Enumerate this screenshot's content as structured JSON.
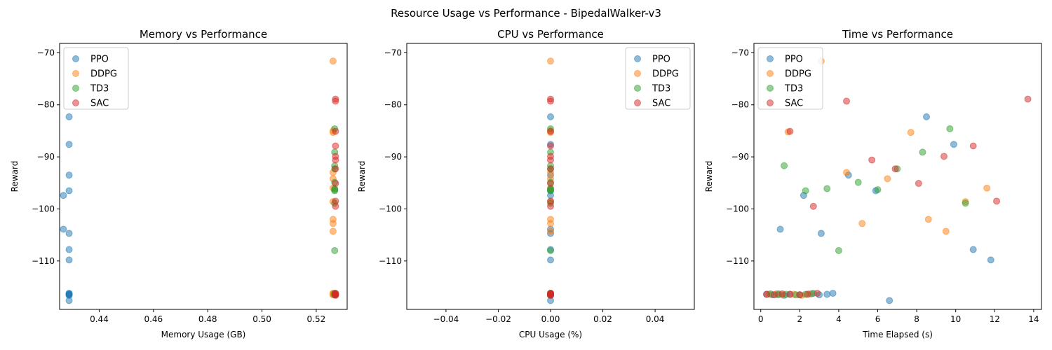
{
  "figure": {
    "suptitle": "Resource Usage vs Performance - BipedalWalker-v3"
  },
  "colors": {
    "PPO": "#1f77b4",
    "DDPG": "#ff7f0e",
    "TD3": "#2ca02c",
    "SAC": "#d62728"
  },
  "chart_data": [
    {
      "type": "scatter",
      "title": "Memory vs Performance",
      "xlabel": "Memory Usage (GB)",
      "ylabel": "Reward",
      "xlim": [
        0.4254,
        0.5314
      ],
      "ylim": [
        -119.3,
        -68.2
      ],
      "xticks": [
        0.44,
        0.46,
        0.48,
        0.5,
        0.52
      ],
      "xtick_labels": [
        "0.44",
        "0.46",
        "0.48",
        "0.50",
        "0.52"
      ],
      "yticks": [
        -110,
        -100,
        -90,
        -80,
        -70
      ],
      "ytick_labels": [
        "−110",
        "−100",
        "−90",
        "−80",
        "−70"
      ],
      "legend": "upper-left",
      "series": [
        {
          "name": "PPO",
          "x": [
            0.4268,
            0.4289,
            0.4289,
            0.4289,
            0.4268,
            0.4289,
            0.4289,
            0.4289,
            0.4289,
            0.4289,
            0.4289,
            0.4289,
            0.4289,
            0.4289,
            0.4289
          ],
          "y": [
            -97.4,
            -82.3,
            -87.6,
            -93.5,
            -103.9,
            -96.5,
            -104.7,
            -107.8,
            -109.8,
            -116.2,
            -116.4,
            -116.5,
            -116.3,
            -116.6,
            -117.6
          ]
        },
        {
          "name": "DDPG",
          "x": [
            0.5262,
            0.5262,
            0.5262,
            0.5262,
            0.5262,
            0.5262,
            0.5262,
            0.5262,
            0.5262,
            0.5262,
            0.5262,
            0.5262,
            0.5262,
            0.5262
          ],
          "y": [
            -71.6,
            -85.3,
            -85.0,
            -93.0,
            -94.2,
            -96.0,
            -98.6,
            -102.0,
            -102.8,
            -104.3,
            -116.2,
            -116.4,
            -116.5,
            -116.3
          ]
        },
        {
          "name": "TD3",
          "x": [
            0.5268,
            0.5268,
            0.5268,
            0.5268,
            0.5268,
            0.5268,
            0.5268,
            0.5268,
            0.5268,
            0.5268,
            0.5268,
            0.5268,
            0.5268
          ],
          "y": [
            -84.6,
            -89.1,
            -91.7,
            -92.3,
            -94.9,
            -96.1,
            -96.3,
            -96.5,
            -98.9,
            -108.0,
            -116.2,
            -116.4,
            -116.5
          ]
        },
        {
          "name": "SAC",
          "x": [
            0.5271,
            0.5271,
            0.5271,
            0.5271,
            0.5271,
            0.5271,
            0.5271,
            0.5271,
            0.5271,
            0.5271,
            0.5271,
            0.5271,
            0.5271,
            0.5271,
            0.5271
          ],
          "y": [
            -78.9,
            -79.3,
            -85.1,
            -87.9,
            -89.9,
            -90.6,
            -92.3,
            -95.1,
            -98.5,
            -99.5,
            -116.2,
            -116.3,
            -116.4,
            -116.5,
            -116.6
          ]
        }
      ]
    },
    {
      "type": "scatter",
      "title": "CPU vs Performance",
      "xlabel": "CPU Usage (%)",
      "ylabel": "Reward",
      "xlim": [
        -0.055,
        0.055
      ],
      "ylim": [
        -119.3,
        -68.2
      ],
      "xticks": [
        -0.04,
        -0.02,
        0.0,
        0.02,
        0.04
      ],
      "xtick_labels": [
        "−0.04",
        "−0.02",
        "0.00",
        "0.02",
        "0.04"
      ],
      "yticks": [
        -110,
        -100,
        -90,
        -80,
        -70
      ],
      "ytick_labels": [
        "−110",
        "−100",
        "−90",
        "−80",
        "−70"
      ],
      "legend": "upper-right",
      "series": [
        {
          "name": "PPO",
          "x": [
            0,
            0,
            0,
            0,
            0,
            0,
            0,
            0,
            0,
            0,
            0,
            0,
            0,
            0,
            0
          ],
          "y": [
            -97.4,
            -82.3,
            -87.6,
            -93.5,
            -103.9,
            -96.5,
            -104.7,
            -107.8,
            -109.8,
            -116.2,
            -116.4,
            -116.5,
            -116.3,
            -116.6,
            -117.6
          ]
        },
        {
          "name": "DDPG",
          "x": [
            0,
            0,
            0,
            0,
            0,
            0,
            0,
            0,
            0,
            0,
            0,
            0,
            0,
            0
          ],
          "y": [
            -71.6,
            -85.3,
            -85.0,
            -93.0,
            -94.2,
            -96.0,
            -98.6,
            -102.0,
            -102.8,
            -104.3,
            -116.2,
            -116.4,
            -116.5,
            -116.3
          ]
        },
        {
          "name": "TD3",
          "x": [
            0,
            0,
            0,
            0,
            0,
            0,
            0,
            0,
            0,
            0,
            0,
            0,
            0
          ],
          "y": [
            -84.6,
            -89.1,
            -91.7,
            -92.3,
            -94.9,
            -96.1,
            -96.3,
            -96.5,
            -98.9,
            -108.0,
            -116.2,
            -116.4,
            -116.5
          ]
        },
        {
          "name": "SAC",
          "x": [
            0,
            0,
            0,
            0,
            0,
            0,
            0,
            0,
            0,
            0,
            0,
            0,
            0,
            0,
            0
          ],
          "y": [
            -78.9,
            -79.3,
            -85.1,
            -87.9,
            -89.9,
            -90.6,
            -92.3,
            -95.1,
            -98.5,
            -99.5,
            -116.2,
            -116.3,
            -116.4,
            -116.5,
            -116.6
          ]
        }
      ]
    },
    {
      "type": "scatter",
      "title": "Time vs Performance",
      "xlabel": "Time Elapsed (s)",
      "ylabel": "Reward",
      "xlim": [
        -0.35,
        14.4
      ],
      "ylim": [
        -119.3,
        -68.2
      ],
      "xticks": [
        0,
        2,
        4,
        6,
        8,
        10,
        12,
        14
      ],
      "xtick_labels": [
        "0",
        "2",
        "4",
        "6",
        "8",
        "10",
        "12",
        "14"
      ],
      "yticks": [
        -110,
        -100,
        -90,
        -80,
        -70
      ],
      "ytick_labels": [
        "−110",
        "−100",
        "−90",
        "−80",
        "−70"
      ],
      "legend": "upper-left",
      "series": [
        {
          "name": "PPO",
          "x": [
            0.3,
            0.6,
            0.9,
            1.2,
            1.5,
            2.0,
            2.6,
            3.0,
            3.4,
            3.7,
            1.0,
            2.2,
            3.1,
            4.5,
            5.9,
            6.6,
            8.5,
            9.9,
            10.9,
            11.8
          ],
          "y": [
            -116.4,
            -116.5,
            -116.3,
            -116.6,
            -116.4,
            -116.5,
            -116.3,
            -116.5,
            -116.4,
            -116.2,
            -103.9,
            -97.4,
            -104.7,
            -93.5,
            -96.5,
            -117.6,
            -82.3,
            -87.6,
            -107.8,
            -109.8
          ]
        },
        {
          "name": "DDPG",
          "x": [
            0.4,
            0.8,
            1.1,
            1.7,
            2.1,
            2.5,
            1.4,
            3.1,
            4.4,
            5.2,
            6.5,
            7.7,
            8.6,
            9.5,
            10.5,
            11.6
          ],
          "y": [
            -116.4,
            -116.3,
            -116.5,
            -116.4,
            -116.6,
            -116.3,
            -85.2,
            -71.6,
            -93.0,
            -102.8,
            -94.2,
            -85.3,
            -102.0,
            -104.3,
            -98.6,
            -96.0
          ]
        },
        {
          "name": "TD3",
          "x": [
            0.5,
            0.9,
            1.3,
            1.8,
            2.3,
            2.7,
            1.2,
            2.3,
            3.4,
            4.0,
            5.0,
            6.0,
            7.0,
            8.3,
            9.7,
            10.5
          ],
          "y": [
            -116.3,
            -116.5,
            -116.4,
            -116.5,
            -116.4,
            -116.2,
            -91.7,
            -96.5,
            -96.1,
            -108.0,
            -94.9,
            -96.3,
            -92.3,
            -89.1,
            -84.6,
            -98.9
          ]
        },
        {
          "name": "SAC",
          "x": [
            0.3,
            0.7,
            1.1,
            1.5,
            2.0,
            2.4,
            2.9,
            1.5,
            2.7,
            4.4,
            5.7,
            6.9,
            8.1,
            9.4,
            10.9,
            12.1,
            13.7
          ],
          "y": [
            -116.4,
            -116.5,
            -116.3,
            -116.4,
            -116.5,
            -116.4,
            -116.2,
            -85.1,
            -99.5,
            -79.3,
            -90.6,
            -92.3,
            -95.1,
            -89.9,
            -87.9,
            -98.5,
            -78.9
          ]
        }
      ]
    }
  ]
}
